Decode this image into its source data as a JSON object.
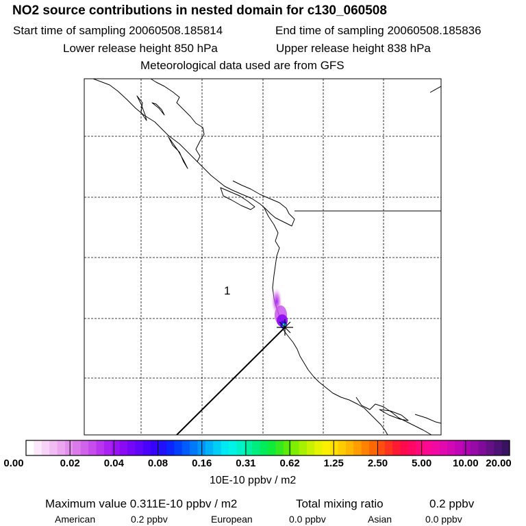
{
  "header": {
    "title": "NO2 source contributions in nested domain for c130_060508",
    "start_label": "Start time of sampling 20060508.185814",
    "end_label": "End time of sampling 20060508.185836",
    "lower_label": "Lower release height  850 hPa",
    "upper_label": "Upper release height  838 hPa",
    "met_label": "Meteorological data used are from GFS"
  },
  "map": {
    "region_label": "1"
  },
  "colorbar": {
    "ticks": [
      "0.00",
      "0.02",
      "0.04",
      "0.08",
      "0.16",
      "0.31",
      "0.62",
      "1.25",
      "2.50",
      "5.00",
      "10.00",
      "20.00"
    ],
    "colors": [
      "#ffffff",
      "#fbe9fb",
      "#f6d3f7",
      "#f0bcf3",
      "#eaa6ef",
      "#e38fec",
      "#db7aea",
      "#d163ea",
      "#c64cec",
      "#b936ef",
      "#aa22f2",
      "#9a12f4",
      "#8a0af5",
      "#7407f7",
      "#5f05f8",
      "#4a03fa",
      "#3503fb",
      "#2010fc",
      "#0a25fd",
      "#0040fc",
      "#005cfb",
      "#0078fa",
      "#0096f8",
      "#00b2f7",
      "#00cef5",
      "#00e8f2",
      "#00f4e6",
      "#00f2c6",
      "#00f0a2",
      "#00ee7e",
      "#00ec5a",
      "#10ea3a",
      "#36e81e",
      "#5aeb0a",
      "#80ee00",
      "#a6f000",
      "#c8f200",
      "#e6f400",
      "#faf000",
      "#ffe000",
      "#ffcc00",
      "#ffb600",
      "#ff9c00",
      "#ff8200",
      "#ff6800",
      "#ff4e10",
      "#ff3420",
      "#ff1a34",
      "#ff0a4c",
      "#ff0864",
      "#ff0a7c",
      "#fa0a92",
      "#f00aa2",
      "#e20aae",
      "#d208b4",
      "#c006b6",
      "#ac06b0",
      "#960aa6",
      "#7e0c98",
      "#661086",
      "#4e1274",
      "#381460"
    ],
    "units": "10E-10 ppbv / m2"
  },
  "footer": {
    "max_value": "Maximum value  0.311E-10 ppbv / m2",
    "total_label": "Total mixing ratio",
    "total_value": "0.2 ppbv",
    "american_label": "American",
    "american_value": "0.2 ppbv",
    "european_label": "European",
    "european_value": "0.0 ppbv",
    "asian_label": "Asian",
    "asian_value": "0.0 ppbv"
  }
}
